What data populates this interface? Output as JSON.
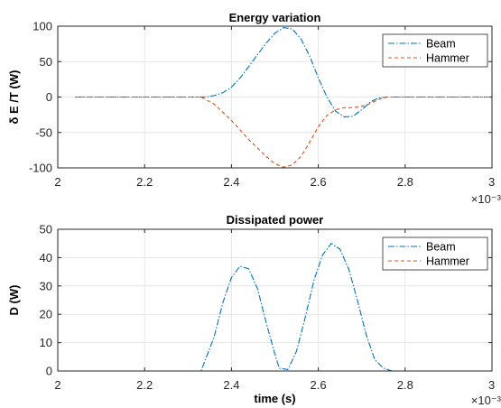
{
  "chart_data": [
    {
      "type": "line",
      "title": "Energy variation",
      "xlabel": "",
      "ylabel": "δ E /T (W)",
      "xlim": [
        2.0,
        3.0
      ],
      "ylim": [
        -100,
        100
      ],
      "xticks": [
        "2",
        "2.2",
        "2.4",
        "2.6",
        "2.8",
        "3"
      ],
      "yticks": [
        "100",
        "50",
        "0",
        "-50",
        "-100"
      ],
      "x_multiplier": "×10⁻³",
      "grid": true,
      "legend_position": "top-right",
      "colors": {
        "Beam": "#0072BD",
        "Hammer": "#D95319"
      },
      "series": [
        {
          "name": "Beam",
          "style": "dash-dot",
          "x": [
            2.04,
            2.1,
            2.2,
            2.3,
            2.34,
            2.36,
            2.38,
            2.4,
            2.42,
            2.44,
            2.46,
            2.48,
            2.5,
            2.52,
            2.54,
            2.56,
            2.58,
            2.6,
            2.62,
            2.64,
            2.66,
            2.68,
            2.7,
            2.72,
            2.74,
            2.76,
            2.8,
            2.9,
            3.0
          ],
          "y": [
            0,
            0,
            0,
            0,
            0,
            2,
            6,
            14,
            27,
            43,
            60,
            76,
            90,
            98,
            96,
            82,
            58,
            27,
            0,
            -20,
            -28,
            -27,
            -18,
            -7,
            -1,
            0,
            0,
            0,
            0
          ]
        },
        {
          "name": "Hammer",
          "style": "dashed",
          "x": [
            2.04,
            2.1,
            2.2,
            2.3,
            2.33,
            2.36,
            2.4,
            2.44,
            2.48,
            2.5,
            2.52,
            2.54,
            2.56,
            2.58,
            2.6,
            2.62,
            2.64,
            2.66,
            2.68,
            2.7,
            2.72,
            2.74,
            2.76,
            2.8,
            2.9,
            3.0
          ],
          "y": [
            0,
            0,
            0,
            0,
            0,
            -10,
            -33,
            -60,
            -84,
            -94,
            -99,
            -96,
            -84,
            -64,
            -42,
            -26,
            -18,
            -15,
            -15,
            -13,
            -9,
            -3,
            0,
            0,
            0,
            0
          ]
        }
      ]
    },
    {
      "type": "line",
      "title": "Dissipated power",
      "xlabel": "time (s)",
      "ylabel": "D (W)",
      "xlim": [
        2.0,
        3.0
      ],
      "ylim": [
        0,
        50
      ],
      "xticks": [
        "2",
        "2.2",
        "2.4",
        "2.6",
        "2.8",
        "3"
      ],
      "yticks": [
        "50",
        "40",
        "30",
        "20",
        "10",
        "0"
      ],
      "x_multiplier": "×10⁻³",
      "grid": true,
      "legend_position": "top-right",
      "colors": {
        "Beam": "#0072BD",
        "Hammer": "#D95319"
      },
      "series": [
        {
          "name": "Beam",
          "style": "dash-dot",
          "x": [
            2.0,
            2.2,
            2.33,
            2.36,
            2.38,
            2.4,
            2.42,
            2.44,
            2.46,
            2.48,
            2.5,
            2.51,
            2.53,
            2.55,
            2.57,
            2.59,
            2.61,
            2.63,
            2.65,
            2.67,
            2.69,
            2.71,
            2.73,
            2.75,
            2.77,
            2.8,
            3.0
          ],
          "y": [
            0,
            0,
            0,
            12,
            24,
            33,
            37,
            36,
            29,
            17,
            6,
            1,
            0.5,
            7,
            19,
            32,
            41,
            45,
            43,
            36,
            25,
            13,
            4,
            1,
            0,
            0,
            0
          ]
        },
        {
          "name": "Hammer",
          "style": "dashed",
          "x": [
            2.0,
            2.2,
            2.4,
            2.6,
            2.8,
            3.0
          ],
          "y": [
            0,
            0,
            0,
            0,
            0,
            0
          ]
        }
      ]
    }
  ]
}
